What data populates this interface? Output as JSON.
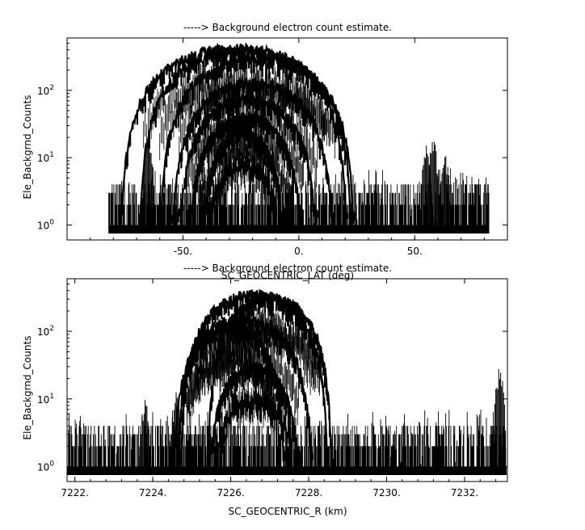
{
  "chart_data": [
    {
      "type": "scatter",
      "title": "-----> Background electron count estimate.",
      "xlabel": "SC_GEOCENTRIC_LAT (deg)",
      "ylabel": "Ele_Backgrnd_Counts",
      "xlim": [
        -100,
        90
      ],
      "ylim": [
        0.6,
        600
      ],
      "yscale": "log",
      "x_ticks": [
        -50,
        0,
        50
      ],
      "x_tick_labels": [
        "-50.",
        "0.",
        "50."
      ],
      "y_ticks": [
        1,
        10,
        100
      ],
      "y_tick_labels": [
        [
          "10",
          "0"
        ],
        [
          "10",
          "1"
        ],
        [
          "10",
          "2"
        ]
      ],
      "data_x_range": [
        -82,
        82
      ],
      "background_counts": [
        1,
        2,
        3,
        4
      ],
      "peak_arcs": [
        {
          "center": -27,
          "halfwidth": 50,
          "peak": 420
        },
        {
          "center": -24,
          "halfwidth": 45,
          "peak": 380
        },
        {
          "center": -18,
          "halfwidth": 42,
          "peak": 300
        },
        {
          "center": -20,
          "halfwidth": 35,
          "peak": 130
        },
        {
          "center": -22,
          "halfwidth": 30,
          "peak": 75
        },
        {
          "center": -23,
          "halfwidth": 25,
          "peak": 40
        },
        {
          "center": -24,
          "halfwidth": 18,
          "peak": 25
        }
      ],
      "spikes": [
        {
          "x": -65,
          "value": 25
        },
        {
          "x": 55,
          "value": 15
        },
        {
          "x": 58,
          "value": 20
        },
        {
          "x": 63,
          "value": 12
        }
      ]
    },
    {
      "type": "scatter",
      "title": "-----> Background electron count estimate.",
      "xlabel": "SC_GEOCENTRIC_R (km)",
      "ylabel": "Ele_Backgrnd_Counts",
      "xlim": [
        7221.8,
        7233.1
      ],
      "ylim": [
        0.6,
        600
      ],
      "yscale": "log",
      "x_ticks": [
        7222,
        7224,
        7226,
        7228,
        7230,
        7232
      ],
      "x_tick_labels": [
        "7222.",
        "7224.",
        "7226.",
        "7228.",
        "7230.",
        "7232."
      ],
      "y_ticks": [
        1,
        10,
        100
      ],
      "y_tick_labels": [
        [
          "10",
          "0"
        ],
        [
          "10",
          "1"
        ],
        [
          "10",
          "2"
        ]
      ],
      "data_x_range": [
        7221.8,
        7233.1
      ],
      "background_counts": [
        1,
        2,
        3,
        4
      ],
      "peak_arcs": [
        {
          "center": 7226.6,
          "halfwidth": 1.9,
          "peak": 350
        },
        {
          "center": 7227.0,
          "halfwidth": 1.6,
          "peak": 320
        },
        {
          "center": 7226.3,
          "halfwidth": 1.8,
          "peak": 150
        },
        {
          "center": 7226.0,
          "halfwidth": 1.4,
          "peak": 120
        },
        {
          "center": 7226.6,
          "halfwidth": 1.2,
          "peak": 30
        }
      ],
      "spikes": [
        {
          "x": 7223.8,
          "value": 10
        },
        {
          "x": 7224.6,
          "value": 12
        },
        {
          "x": 7232.9,
          "value": 30
        }
      ]
    }
  ]
}
